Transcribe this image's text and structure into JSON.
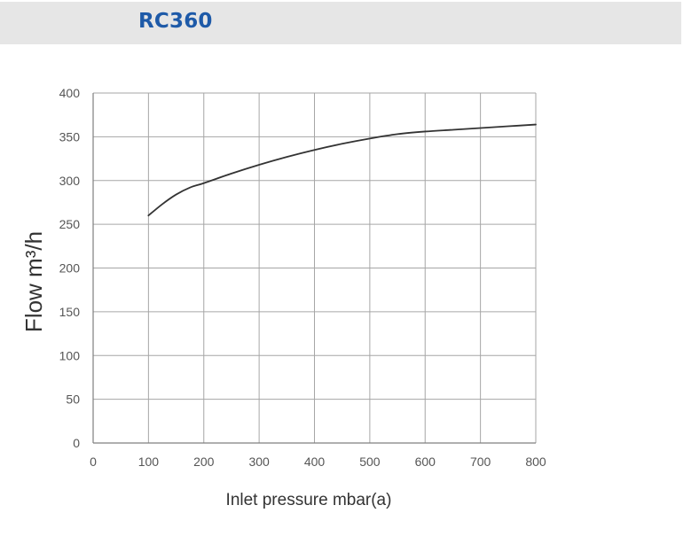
{
  "header": {
    "title": "RC360"
  },
  "chart_data": {
    "type": "line",
    "title": "RC360",
    "xlabel": "Inlet pressure mbar(a)",
    "ylabel": "Flow m³/h",
    "xlim": [
      0,
      800
    ],
    "ylim": [
      0,
      400
    ],
    "x_ticks": [
      0,
      100,
      200,
      300,
      400,
      500,
      600,
      700,
      800
    ],
    "y_ticks": [
      0,
      50,
      100,
      150,
      200,
      250,
      300,
      350,
      400
    ],
    "grid": true,
    "legend": "none",
    "series": [
      {
        "color": "#333333",
        "x": [
          100,
          125,
          150,
          175,
          200,
          250,
          300,
          350,
          400,
          450,
          500,
          550,
          600,
          650,
          700,
          750,
          800
        ],
        "y": [
          260,
          273,
          284,
          292,
          297,
          308,
          318,
          327,
          335,
          342,
          348,
          353,
          356,
          358,
          360,
          362,
          364
        ]
      }
    ]
  }
}
